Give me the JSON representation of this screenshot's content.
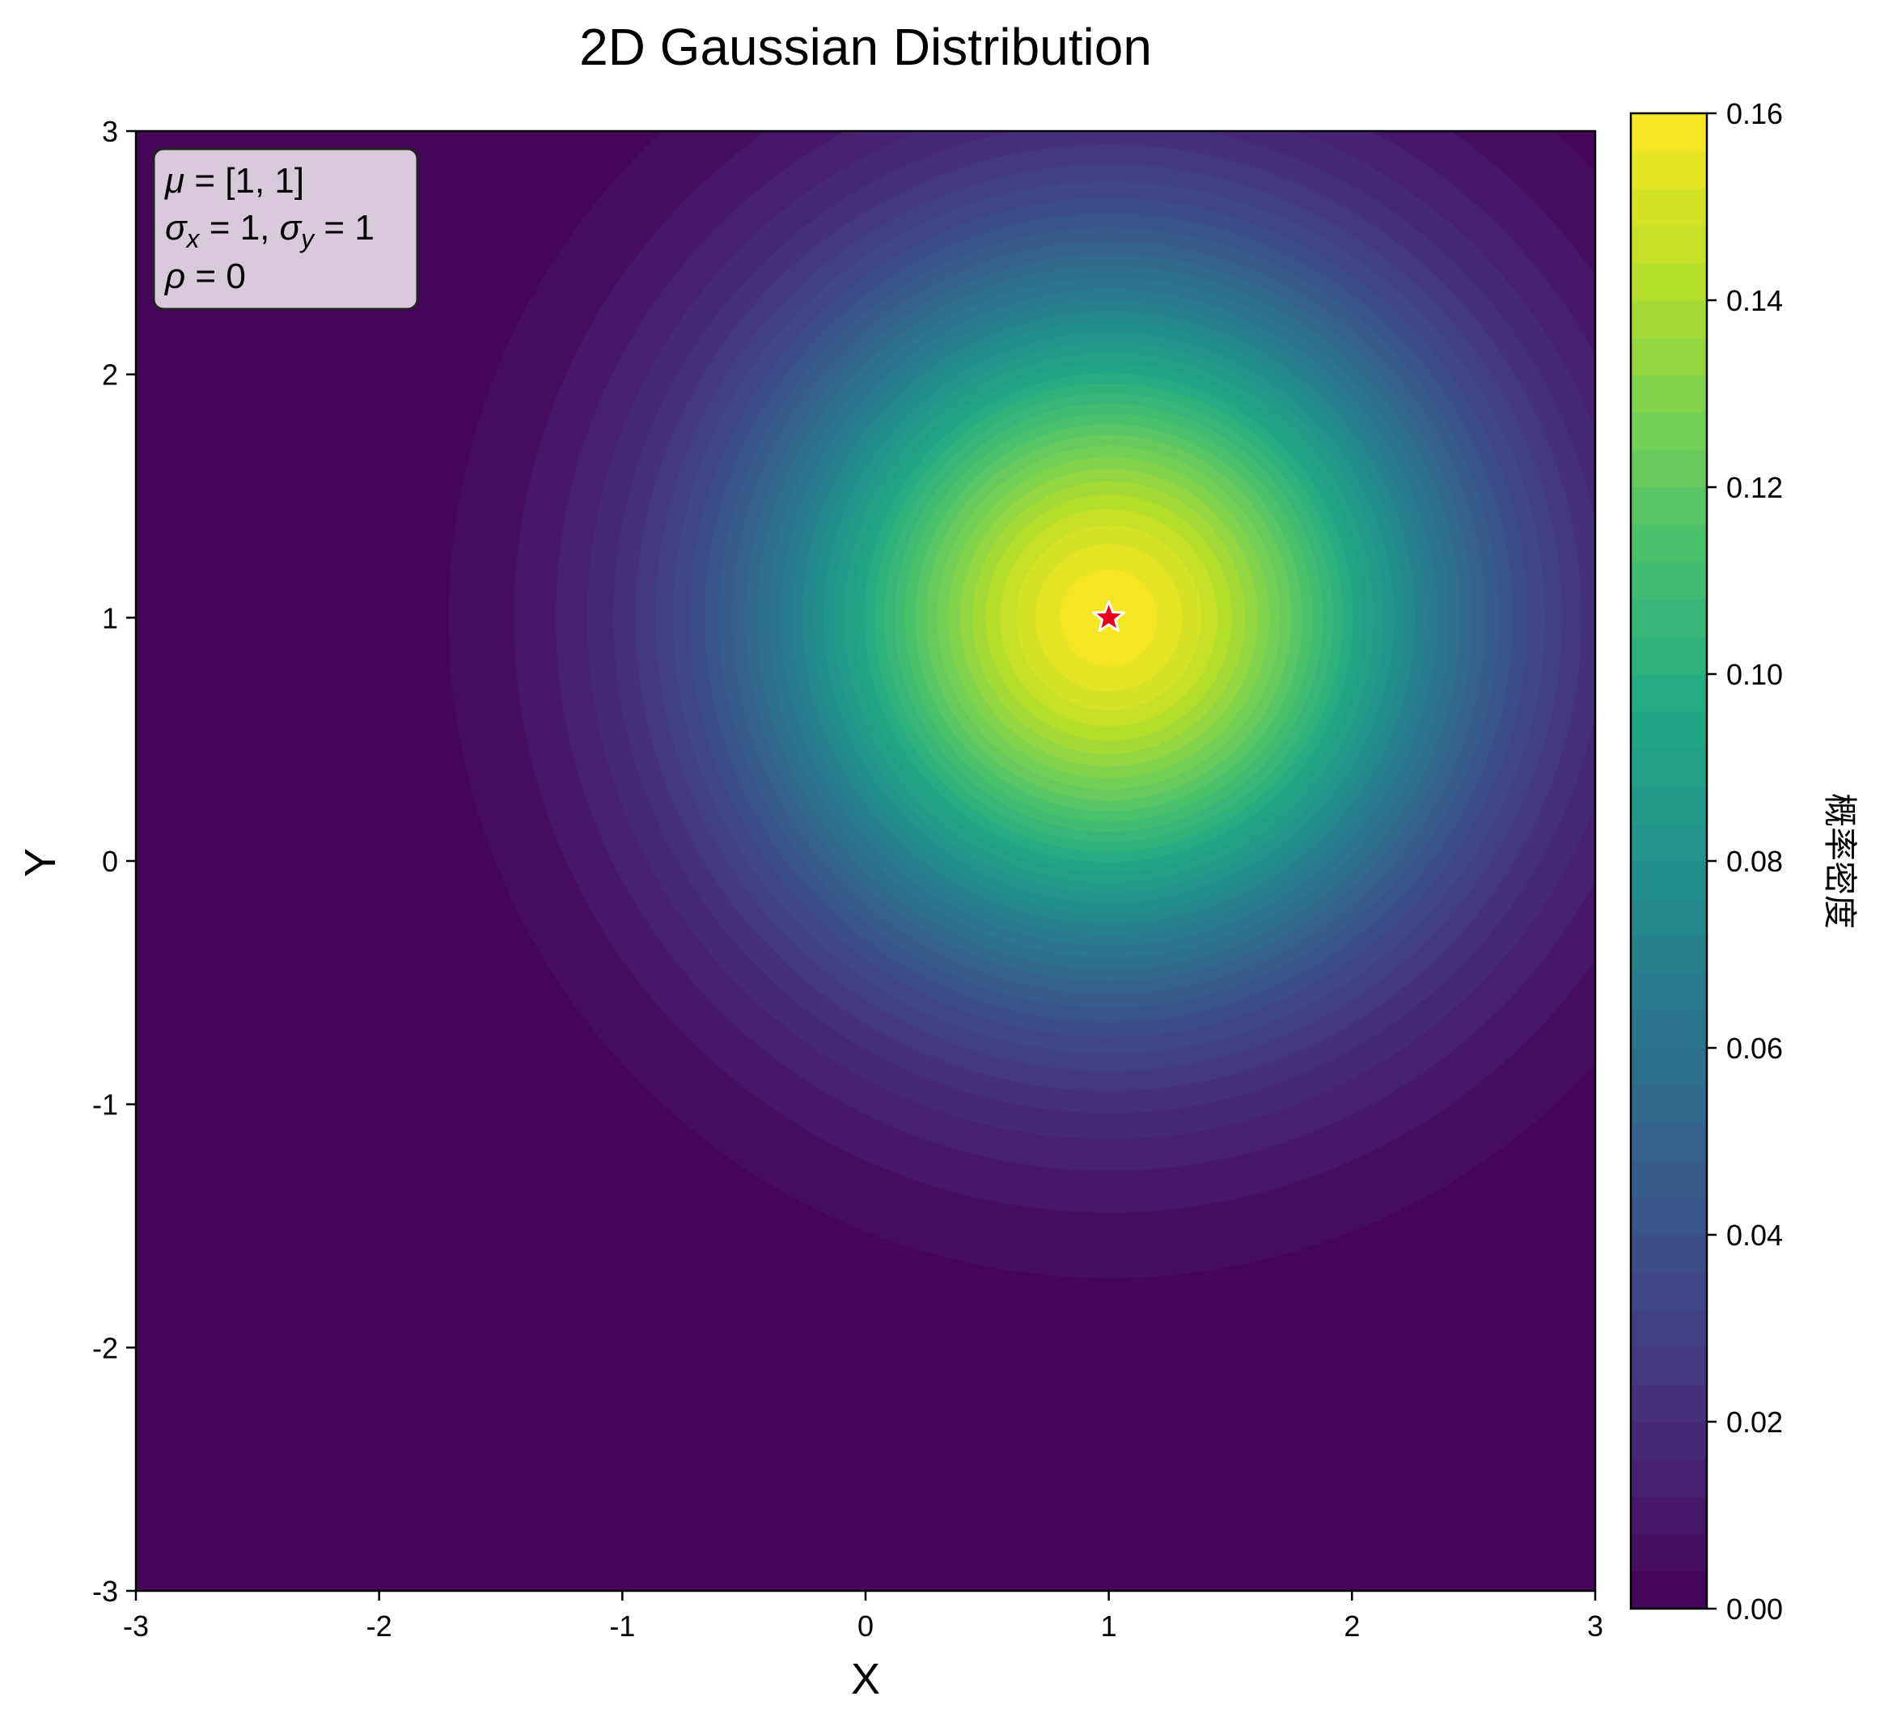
{
  "chart_data": {
    "type": "heatmap",
    "subtype": "filled-contour",
    "title": "2D Gaussian Distribution",
    "xlabel": "X",
    "ylabel": "Y",
    "xlim": [
      -3,
      3
    ],
    "ylim": [
      -3,
      3
    ],
    "x_ticks": [
      -3,
      -2,
      -1,
      0,
      1,
      2,
      3
    ],
    "x_tick_labels": [
      "-3",
      "-2",
      "-1",
      "0",
      "1",
      "2",
      "3"
    ],
    "y_ticks": [
      -3,
      -2,
      -1,
      0,
      1,
      2,
      3
    ],
    "y_tick_labels": [
      "-3",
      "-2",
      "-1",
      "0",
      "1",
      "2",
      "3"
    ],
    "distribution": {
      "mu": [
        1,
        1
      ],
      "sigma_x": 1,
      "sigma_y": 1,
      "rho": 0
    },
    "contour_levels": 40,
    "colormap": "viridis",
    "colorbar": {
      "label": "概率密度",
      "range": [
        0.0,
        0.16
      ],
      "ticks": [
        0.0,
        0.02,
        0.04,
        0.06,
        0.08,
        0.1,
        0.12,
        0.14,
        0.16
      ],
      "tick_labels": [
        "0.00",
        "0.02",
        "0.04",
        "0.06",
        "0.08",
        "0.10",
        "0.12",
        "0.14",
        "0.16"
      ]
    },
    "peak_marker": {
      "x": 1,
      "y": 1,
      "shape": "star",
      "color": "#e8001c",
      "edge_color": "#ffffff"
    },
    "annotation_box": {
      "line1": {
        "sym": "μ",
        "rest": " = [1, 1]"
      },
      "line2": {
        "sym_a": "σ",
        "sub_a": "x",
        "mid": " = 1, ",
        "sym_b": "σ",
        "sub_b": "y",
        "end": " = 1"
      },
      "line3": {
        "sym": "ρ",
        "rest": " = 0"
      },
      "background": "#d8cadb",
      "placement": "top-left"
    },
    "grid": false
  }
}
